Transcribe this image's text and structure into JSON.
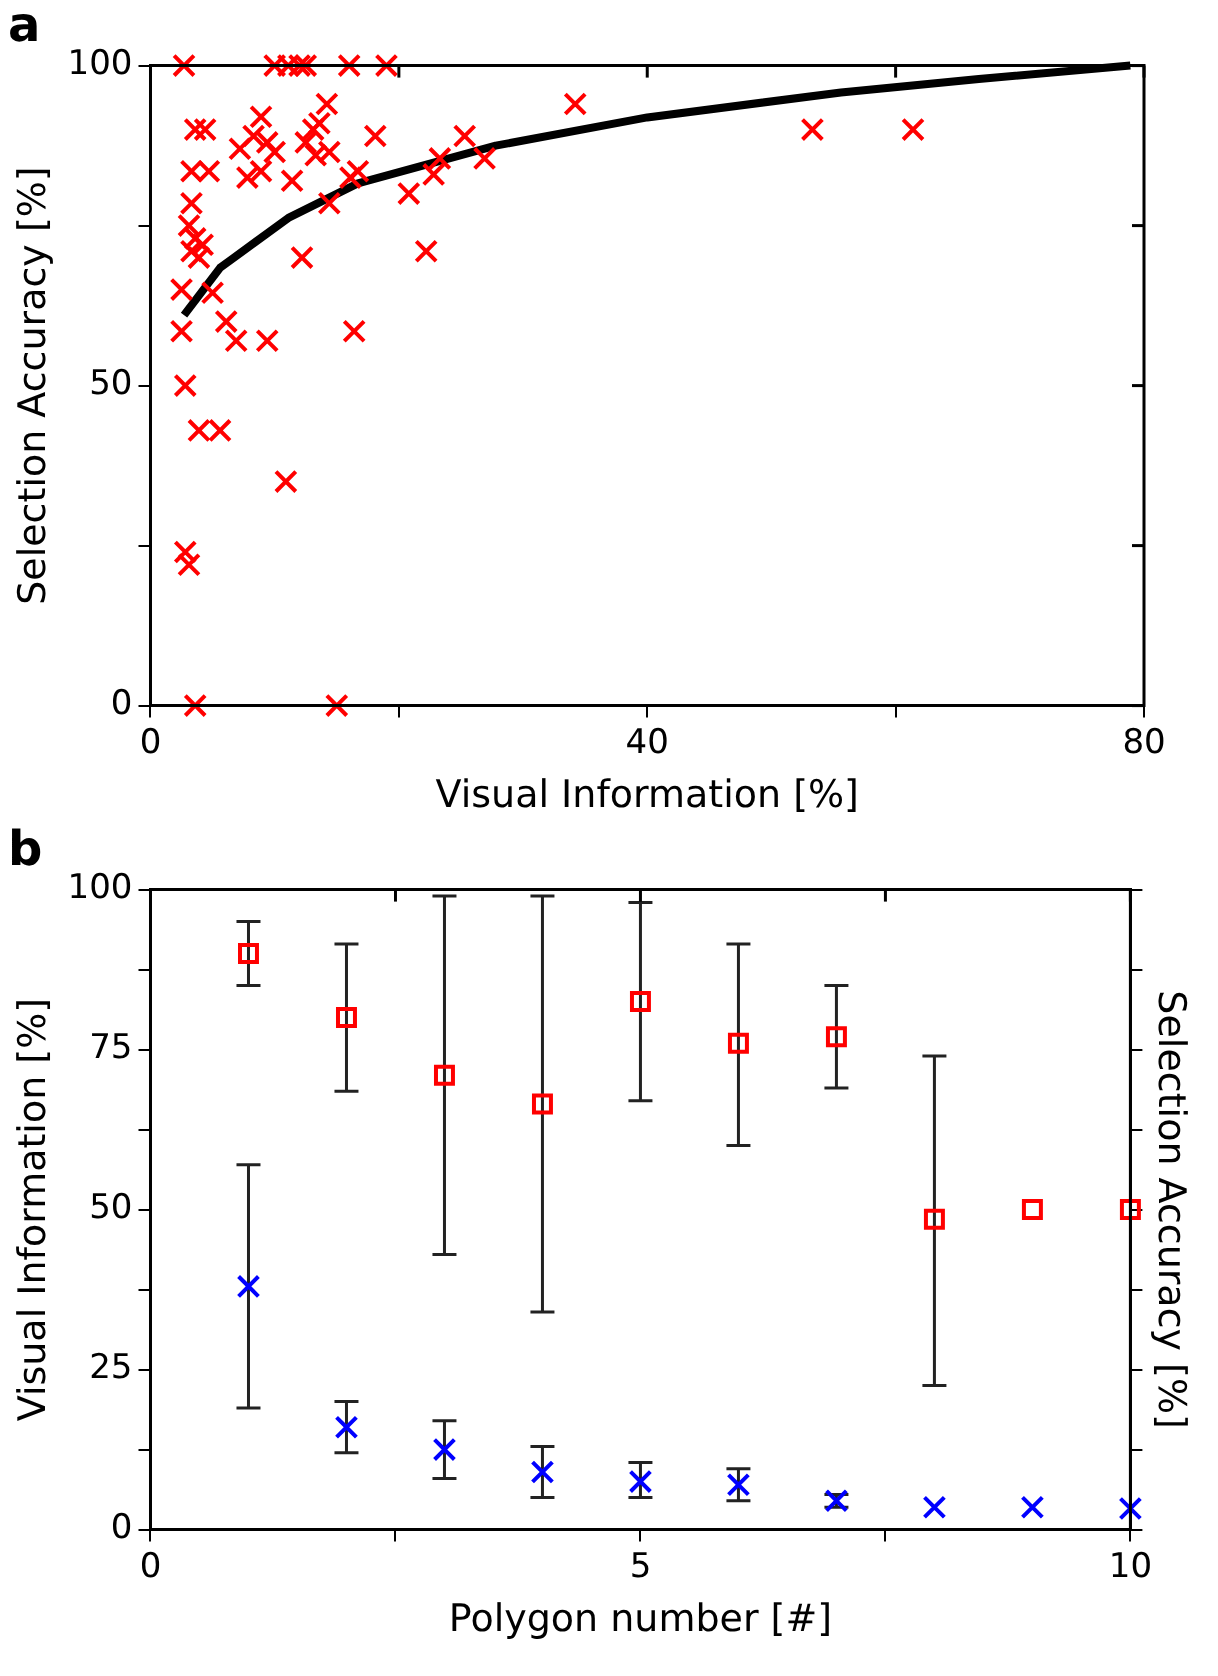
{
  "chart_data": [
    {
      "type": "scatter",
      "title": "a",
      "xlabel": "Visual Information [%]",
      "ylabel": "Selection Accuracy [%]",
      "xlim": [
        0,
        80
      ],
      "xticks": [
        0,
        {
          "value": 20,
          "label": null
        },
        40,
        {
          "value": 60,
          "label": null
        },
        80
      ],
      "ylim": [
        0,
        100
      ],
      "yticks": [
        0,
        {
          "value": 25,
          "label": null
        },
        50,
        {
          "value": 75,
          "label": null
        },
        100
      ],
      "grid": false,
      "legend": false,
      "series": [
        {
          "color": "#ff0000",
          "marker": "cross",
          "x": [
            2.7,
            10,
            11.1,
            12,
            12.5,
            16,
            19,
            34.2,
            53.3,
            61.4,
            14.2,
            13.6,
            3.6,
            4.4,
            8.9,
            8.3,
            9.4,
            7.2,
            10,
            12.5,
            13.3,
            14.4,
            13.1,
            18.1,
            25.3,
            23.3,
            26.9,
            22.8,
            16.7,
            16.1,
            3.3,
            4.7,
            7.8,
            8.9,
            11.4,
            20.8,
            14.4,
            3.3,
            3.1,
            3.6,
            4.2,
            3.3,
            3.9,
            12.2,
            22.2,
            2.5,
            5,
            2.5,
            6.1,
            6.9,
            9.4,
            16.4,
            2.8,
            3.9,
            5.6,
            10.9,
            2.8,
            3.1,
            3.6,
            15
          ],
          "values": [
            100,
            100,
            100,
            100,
            100,
            100,
            100,
            94,
            90,
            90,
            94,
            91,
            90,
            90,
            92,
            89,
            88,
            87,
            86.5,
            88,
            86,
            86.5,
            90,
            89,
            89,
            85.5,
            85.5,
            83,
            83.5,
            82.5,
            83.5,
            83.5,
            82.5,
            83.5,
            82,
            80,
            78.5,
            78.5,
            75,
            73,
            72,
            71,
            70,
            70,
            71,
            65,
            64.5,
            58.5,
            60,
            57,
            57,
            58.5,
            50,
            43,
            43,
            35,
            24,
            22,
            0,
            0
          ]
        },
        {
          "type": "line",
          "color": "#000000",
          "marker": "none",
          "x": [
            2.7,
            5.6,
            11.1,
            16.7,
            27.8,
            40,
            55.6,
            66.7,
            78.9
          ],
          "values": [
            61,
            68.4,
            76.2,
            81.6,
            87.5,
            91.9,
            95.8,
            97.9,
            100
          ]
        }
      ]
    },
    {
      "type": "scatter",
      "title": "b",
      "xlabel": "Polygon number [#]",
      "ylabel": "Visual Information [%]",
      "y2label": "Selection Accuracy [%]",
      "xlim": [
        0,
        10
      ],
      "xticks": [
        0,
        {
          "value": 2.5,
          "label": null
        },
        5,
        {
          "value": 7.5,
          "label": null
        },
        10
      ],
      "ylim": [
        0,
        100
      ],
      "yticks": [
        0,
        {
          "value": 12.5,
          "label": null
        },
        25,
        {
          "value": 37.5,
          "label": null
        },
        50,
        {
          "value": 62.5,
          "label": null
        },
        75,
        {
          "value": 87.5,
          "label": null
        },
        100
      ],
      "grid": false,
      "legend": false,
      "series": [
        {
          "color": "#ff0000",
          "marker": "square",
          "x": [
            1,
            2,
            3,
            4,
            5,
            6,
            7,
            8,
            9,
            10
          ],
          "values": [
            90,
            80,
            71,
            66.5,
            82.5,
            76,
            77,
            48.5,
            50,
            50
          ],
          "errors": [
            [
              85,
              95
            ],
            [
              68.5,
              91.5
            ],
            [
              43,
              99
            ],
            [
              34,
              99
            ],
            [
              67,
              98
            ],
            [
              60,
              91.5
            ],
            [
              69,
              85
            ],
            [
              22.5,
              74
            ],
            null,
            null
          ]
        },
        {
          "color": "#0000ff",
          "marker": "cross",
          "x": [
            1,
            2,
            3,
            4,
            5,
            6,
            7,
            8,
            9,
            10
          ],
          "values": [
            38,
            16,
            12.5,
            9,
            7.5,
            7,
            4.5,
            3.5,
            3.5,
            3.3
          ],
          "errors": [
            [
              19,
              57
            ],
            [
              12,
              20
            ],
            [
              8,
              17
            ],
            [
              5,
              13
            ],
            [
              5,
              10.5
            ],
            [
              4.5,
              9.5
            ],
            [
              3.5,
              5.5
            ],
            null,
            null,
            null
          ]
        }
      ]
    }
  ]
}
